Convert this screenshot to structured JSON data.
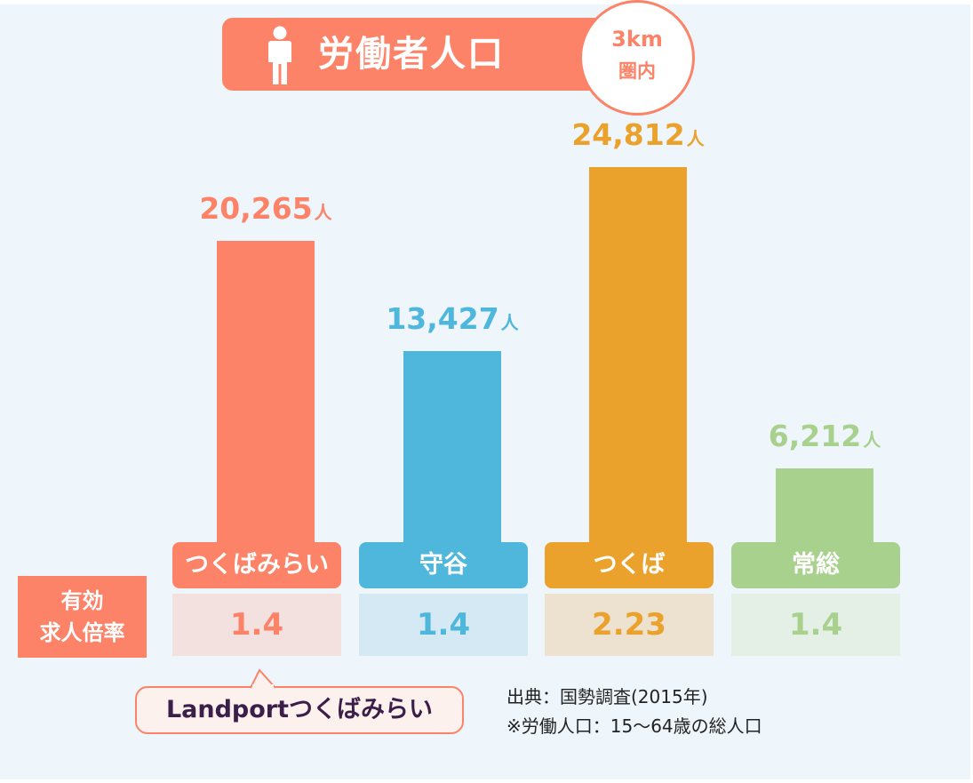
{
  "header": {
    "title": "労働者人口",
    "radius_line1": "3km",
    "radius_line2": "圏内",
    "icon": "person-icon"
  },
  "ratio_header": {
    "line1": "有効",
    "line2": "求人倍率"
  },
  "callout": {
    "text": "Landportつくばみらい"
  },
  "notes": {
    "source": "出典：国勢調査(2015年)",
    "definition": "※労働人口：15〜64歳の総人口"
  },
  "colors": {
    "accent": "#fd8368",
    "tsukubamirai": "#fd8368",
    "moriya": "#4fb6dc",
    "tsukuba": "#eba22c",
    "joso": "#a9d18e"
  },
  "chart_data": {
    "type": "bar",
    "categories": [
      "つくばみらい",
      "守谷",
      "つくば",
      "常総"
    ],
    "values": [
      20265,
      13427,
      24812,
      6212
    ],
    "value_labels": [
      "20,265",
      "13,427",
      "24,812",
      "6,212"
    ],
    "unit": "人",
    "job_ratio": [
      "1.4",
      "1.4",
      "2.23",
      "1.4"
    ],
    "title": "労働者人口",
    "xlabel": "",
    "ylabel": "",
    "grid": false,
    "legend": "none"
  }
}
